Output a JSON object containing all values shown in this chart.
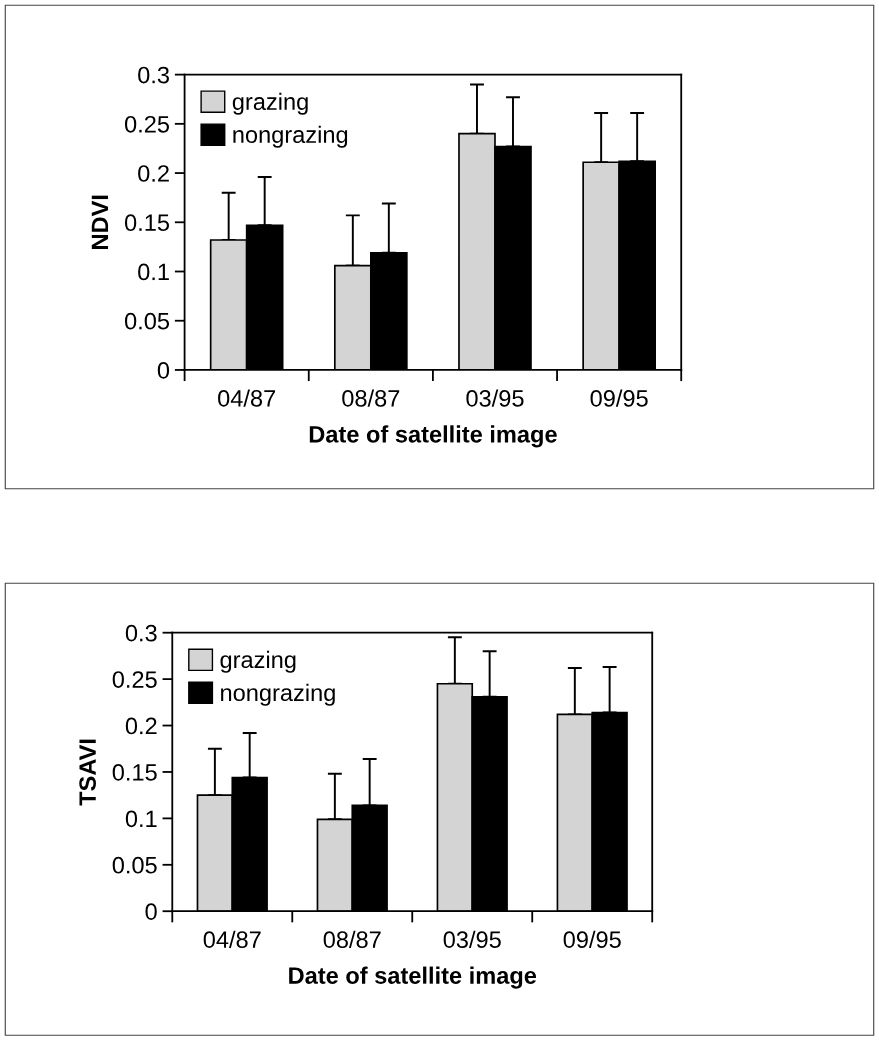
{
  "chart_data": [
    {
      "type": "bar",
      "xlabel": "Date of satellite image",
      "ylabel": "NDVI",
      "categories": [
        "04/87",
        "08/87",
        "03/95",
        "09/95"
      ],
      "series": [
        {
          "name": "grazing",
          "color": "#d4d4d4",
          "values": [
            0.132,
            0.106,
            0.24,
            0.211
          ],
          "errors": [
            [
              0.132,
              0.18
            ],
            [
              0.106,
              0.157
            ],
            [
              0.24,
              0.29
            ],
            [
              0.211,
              0.261
            ]
          ]
        },
        {
          "name": "nongrazing",
          "color": "#000000",
          "values": [
            0.147,
            0.119,
            0.227,
            0.212
          ],
          "errors": [
            [
              0.147,
              0.196
            ],
            [
              0.119,
              0.169
            ],
            [
              0.227,
              0.277
            ],
            [
              0.212,
              0.261
            ]
          ]
        }
      ],
      "ylim": [
        0,
        0.3
      ],
      "yticks": [
        0,
        0.05,
        0.1,
        0.15,
        0.2,
        0.25,
        0.3
      ],
      "grid": false,
      "legend": "top left"
    },
    {
      "type": "bar",
      "xlabel": "Date of satellite image",
      "ylabel": "TSAVI",
      "categories": [
        "04/87",
        "08/87",
        "03/95",
        "09/95"
      ],
      "series": [
        {
          "name": "grazing",
          "color": "#d4d4d4",
          "values": [
            0.125,
            0.099,
            0.245,
            0.212
          ],
          "errors": [
            [
              0.125,
              0.175
            ],
            [
              0.099,
              0.148
            ],
            [
              0.245,
              0.295
            ],
            [
              0.212,
              0.262
            ]
          ]
        },
        {
          "name": "nongrazing",
          "color": "#000000",
          "values": [
            0.144,
            0.114,
            0.231,
            0.214
          ],
          "errors": [
            [
              0.144,
              0.192
            ],
            [
              0.114,
              0.164
            ],
            [
              0.231,
              0.28
            ],
            [
              0.214,
              0.263
            ]
          ]
        }
      ],
      "ylim": [
        0,
        0.3
      ],
      "yticks": [
        0,
        0.05,
        0.1,
        0.15,
        0.2,
        0.25,
        0.3
      ],
      "grid": false,
      "legend": "top left"
    }
  ]
}
